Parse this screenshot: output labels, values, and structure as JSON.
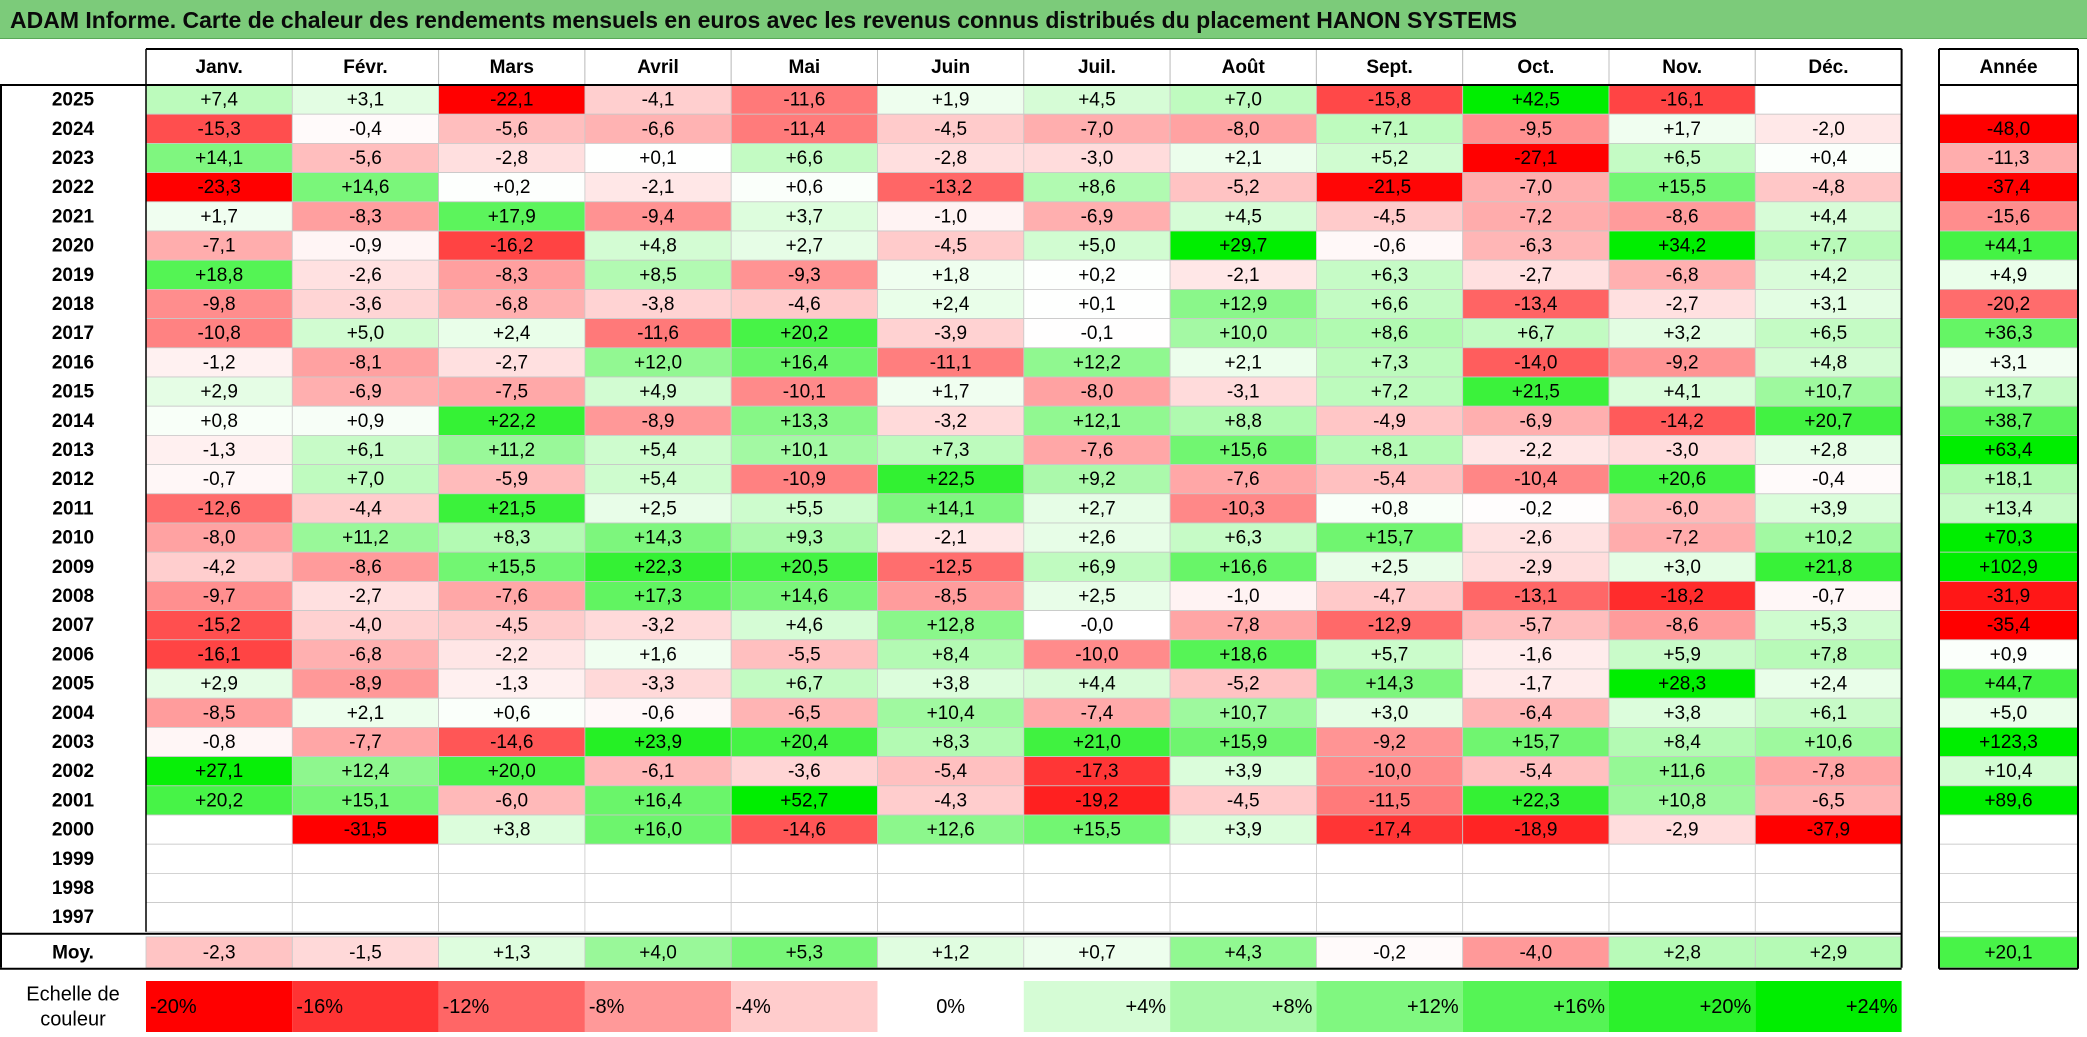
{
  "title": "ADAM Informe. Carte de chaleur des rendements mensuels en euros avec les revenus connus distribués du placement HANON SYSTEMS",
  "chart_data": {
    "type": "heatmap",
    "months": [
      "Janv.",
      "Févr.",
      "Mars",
      "Avril",
      "Mai",
      "Juin",
      "Juil.",
      "Août",
      "Sept.",
      "Oct.",
      "Nov.",
      "Déc."
    ],
    "annual_header": "Année",
    "rows": [
      {
        "year": "2025",
        "values": [
          "+7,4",
          "+3,1",
          "-22,1",
          "-4,1",
          "-11,6",
          "+1,9",
          "+4,5",
          "+7,0",
          "-15,8",
          "+42,5",
          "-16,1",
          ""
        ],
        "annual": ""
      },
      {
        "year": "2024",
        "values": [
          "-15,3",
          "-0,4",
          "-5,6",
          "-6,6",
          "-11,4",
          "-4,5",
          "-7,0",
          "-8,0",
          "+7,1",
          "-9,5",
          "+1,7",
          "-2,0"
        ],
        "annual": "-48,0"
      },
      {
        "year": "2023",
        "values": [
          "+14,1",
          "-5,6",
          "-2,8",
          "+0,1",
          "+6,6",
          "-2,8",
          "-3,0",
          "+2,1",
          "+5,2",
          "-27,1",
          "+6,5",
          "+0,4"
        ],
        "annual": "-11,3"
      },
      {
        "year": "2022",
        "values": [
          "-23,3",
          "+14,6",
          "+0,2",
          "-2,1",
          "+0,6",
          "-13,2",
          "+8,6",
          "-5,2",
          "-21,5",
          "-7,0",
          "+15,5",
          "-4,8"
        ],
        "annual": "-37,4"
      },
      {
        "year": "2021",
        "values": [
          "+1,7",
          "-8,3",
          "+17,9",
          "-9,4",
          "+3,7",
          "-1,0",
          "-6,9",
          "+4,5",
          "-4,5",
          "-7,2",
          "-8,6",
          "+4,4"
        ],
        "annual": "-15,6"
      },
      {
        "year": "2020",
        "values": [
          "-7,1",
          "-0,9",
          "-16,2",
          "+4,8",
          "+2,7",
          "-4,5",
          "+5,0",
          "+29,7",
          "-0,6",
          "-6,3",
          "+34,2",
          "+7,7"
        ],
        "annual": "+44,1"
      },
      {
        "year": "2019",
        "values": [
          "+18,8",
          "-2,6",
          "-8,3",
          "+8,5",
          "-9,3",
          "+1,8",
          "+0,2",
          "-2,1",
          "+6,3",
          "-2,7",
          "-6,8",
          "+4,2"
        ],
        "annual": "+4,9"
      },
      {
        "year": "2018",
        "values": [
          "-9,8",
          "-3,6",
          "-6,8",
          "-3,8",
          "-4,6",
          "+2,4",
          "+0,1",
          "+12,9",
          "+6,6",
          "-13,4",
          "-2,7",
          "+3,1"
        ],
        "annual": "-20,2"
      },
      {
        "year": "2017",
        "values": [
          "-10,8",
          "+5,0",
          "+2,4",
          "-11,6",
          "+20,2",
          "-3,9",
          "-0,1",
          "+10,0",
          "+8,6",
          "+6,7",
          "+3,2",
          "+6,5"
        ],
        "annual": "+36,3"
      },
      {
        "year": "2016",
        "values": [
          "-1,2",
          "-8,1",
          "-2,7",
          "+12,0",
          "+16,4",
          "-11,1",
          "+12,2",
          "+2,1",
          "+7,3",
          "-14,0",
          "-9,2",
          "+4,8"
        ],
        "annual": "+3,1"
      },
      {
        "year": "2015",
        "values": [
          "+2,9",
          "-6,9",
          "-7,5",
          "+4,9",
          "-10,1",
          "+1,7",
          "-8,0",
          "-3,1",
          "+7,2",
          "+21,5",
          "+4,1",
          "+10,7"
        ],
        "annual": "+13,7"
      },
      {
        "year": "2014",
        "values": [
          "+0,8",
          "+0,9",
          "+22,2",
          "-8,9",
          "+13,3",
          "-3,2",
          "+12,1",
          "+8,8",
          "-4,9",
          "-6,9",
          "-14,2",
          "+20,7"
        ],
        "annual": "+38,7"
      },
      {
        "year": "2013",
        "values": [
          "-1,3",
          "+6,1",
          "+11,2",
          "+5,4",
          "+10,1",
          "+7,3",
          "-7,6",
          "+15,6",
          "+8,1",
          "-2,2",
          "-3,0",
          "+2,8"
        ],
        "annual": "+63,4"
      },
      {
        "year": "2012",
        "values": [
          "-0,7",
          "+7,0",
          "-5,9",
          "+5,4",
          "-10,9",
          "+22,5",
          "+9,2",
          "-7,6",
          "-5,4",
          "-10,4",
          "+20,6",
          "-0,4"
        ],
        "annual": "+18,1"
      },
      {
        "year": "2011",
        "values": [
          "-12,6",
          "-4,4",
          "+21,5",
          "+2,5",
          "+5,5",
          "+14,1",
          "+2,7",
          "-10,3",
          "+0,8",
          "-0,2",
          "-6,0",
          "+3,9"
        ],
        "annual": "+13,4"
      },
      {
        "year": "2010",
        "values": [
          "-8,0",
          "+11,2",
          "+8,3",
          "+14,3",
          "+9,3",
          "-2,1",
          "+2,6",
          "+6,3",
          "+15,7",
          "-2,6",
          "-7,2",
          "+10,2"
        ],
        "annual": "+70,3"
      },
      {
        "year": "2009",
        "values": [
          "-4,2",
          "-8,6",
          "+15,5",
          "+22,3",
          "+20,5",
          "-12,5",
          "+6,9",
          "+16,6",
          "+2,5",
          "-2,9",
          "+3,0",
          "+21,8"
        ],
        "annual": "+102,9"
      },
      {
        "year": "2008",
        "values": [
          "-9,7",
          "-2,7",
          "-7,6",
          "+17,3",
          "+14,6",
          "-8,5",
          "+2,5",
          "-1,0",
          "-4,7",
          "-13,1",
          "-18,2",
          "-0,7"
        ],
        "annual": "-31,9"
      },
      {
        "year": "2007",
        "values": [
          "-15,2",
          "-4,0",
          "-4,5",
          "-3,2",
          "+4,6",
          "+12,8",
          "-0,0",
          "-7,8",
          "-12,9",
          "-5,7",
          "-8,6",
          "+5,3"
        ],
        "annual": "-35,4"
      },
      {
        "year": "2006",
        "values": [
          "-16,1",
          "-6,8",
          "-2,2",
          "+1,6",
          "-5,5",
          "+8,4",
          "-10,0",
          "+18,6",
          "+5,7",
          "-1,6",
          "+5,9",
          "+7,8"
        ],
        "annual": "+0,9"
      },
      {
        "year": "2005",
        "values": [
          "+2,9",
          "-8,9",
          "-1,3",
          "-3,3",
          "+6,7",
          "+3,8",
          "+4,4",
          "-5,2",
          "+14,3",
          "-1,7",
          "+28,3",
          "+2,4"
        ],
        "annual": "+44,7"
      },
      {
        "year": "2004",
        "values": [
          "-8,5",
          "+2,1",
          "+0,6",
          "-0,6",
          "-6,5",
          "+10,4",
          "-7,4",
          "+10,7",
          "+3,0",
          "-6,4",
          "+3,8",
          "+6,1"
        ],
        "annual": "+5,0"
      },
      {
        "year": "2003",
        "values": [
          "-0,8",
          "-7,7",
          "-14,6",
          "+23,9",
          "+20,4",
          "+8,3",
          "+21,0",
          "+15,9",
          "-9,2",
          "+15,7",
          "+8,4",
          "+10,6"
        ],
        "annual": "+123,3"
      },
      {
        "year": "2002",
        "values": [
          "+27,1",
          "+12,4",
          "+20,0",
          "-6,1",
          "-3,6",
          "-5,4",
          "-17,3",
          "+3,9",
          "-10,0",
          "-5,4",
          "+11,6",
          "-7,8"
        ],
        "annual": "+10,4"
      },
      {
        "year": "2001",
        "values": [
          "+20,2",
          "+15,1",
          "-6,0",
          "+16,4",
          "+52,7",
          "-4,3",
          "-19,2",
          "-4,5",
          "-11,5",
          "+22,3",
          "+10,8",
          "-6,5"
        ],
        "annual": "+89,6"
      },
      {
        "year": "2000",
        "values": [
          "",
          "-31,5",
          "+3,8",
          "+16,0",
          "-14,6",
          "+12,6",
          "+15,5",
          "+3,9",
          "-17,4",
          "-18,9",
          "-2,9",
          "-37,9"
        ],
        "annual": ""
      },
      {
        "year": "1999",
        "values": [
          "",
          "",
          "",
          "",
          "",
          "",
          "",
          "",
          "",
          "",
          "",
          ""
        ],
        "annual": ""
      },
      {
        "year": "1998",
        "values": [
          "",
          "",
          "",
          "",
          "",
          "",
          "",
          "",
          "",
          "",
          "",
          ""
        ],
        "annual": ""
      },
      {
        "year": "1997",
        "values": [
          "",
          "",
          "",
          "",
          "",
          "",
          "",
          "",
          "",
          "",
          "",
          ""
        ],
        "annual": ""
      }
    ],
    "average": {
      "label": "Moy.",
      "values": [
        "-2,3",
        "-1,5",
        "+1,3",
        "+4,0",
        "+5,3",
        "+1,2",
        "+0,7",
        "+4,3",
        "-0,2",
        "-4,0",
        "+2,8",
        "+2,9"
      ],
      "annual": "+20,1"
    },
    "color_scale": {
      "label_line1": "Echelle de",
      "label_line2": "couleur",
      "steps": [
        "-20%",
        "-16%",
        "-12%",
        "-8%",
        "-4%",
        "0%",
        "+4%",
        "+8%",
        "+12%",
        "+16%",
        "+20%",
        "+24%"
      ],
      "negative_color": "#ff0000",
      "neutral_color": "#ffffff",
      "positive_color": "#00ee00"
    }
  }
}
